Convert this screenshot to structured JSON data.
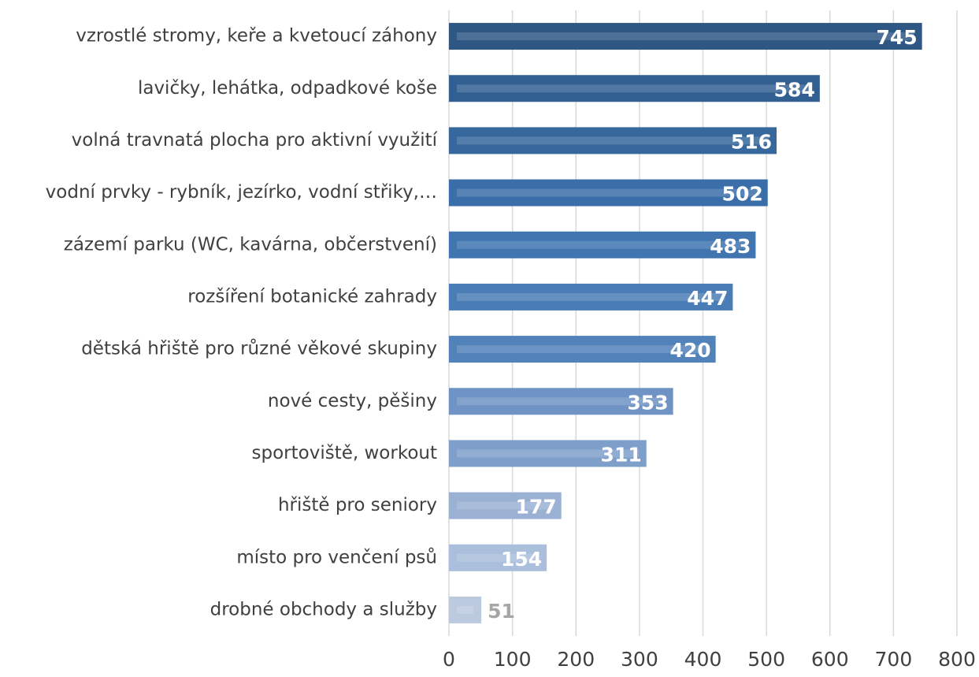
{
  "chart_data": {
    "type": "barh",
    "categories": [
      "vzrostlé stromy, keře a kvetoucí záhony",
      "lavičky, lehátka, odpadkové koše",
      "volná travnatá plocha pro aktivní využití",
      "vodní prvky - rybník, jezírko, vodní střiky,…",
      "zázemí parku (WC, kavárna, občerstvení)",
      "rozšíření botanické zahrady",
      "dětská hřiště pro různé věkové skupiny",
      "nové cesty, pěšiny",
      "sportoviště, workout",
      "hřiště pro seniory",
      "místo pro venčení psů",
      "drobné obchody a služby"
    ],
    "values": [
      745,
      584,
      516,
      502,
      483,
      447,
      420,
      353,
      311,
      177,
      154,
      51
    ],
    "colors": [
      "#2e5784",
      "#325f92",
      "#36679d",
      "#3a6ea8",
      "#4075b0",
      "#4a7db5",
      "#5282ba",
      "#6f93c4",
      "#7f9fcb",
      "#9ab1d3",
      "#aabfdb",
      "#bccadf"
    ],
    "xlim": [
      0,
      800
    ],
    "xticks": [
      0,
      100,
      200,
      300,
      400,
      500,
      600,
      700,
      800
    ],
    "grid": true
  }
}
